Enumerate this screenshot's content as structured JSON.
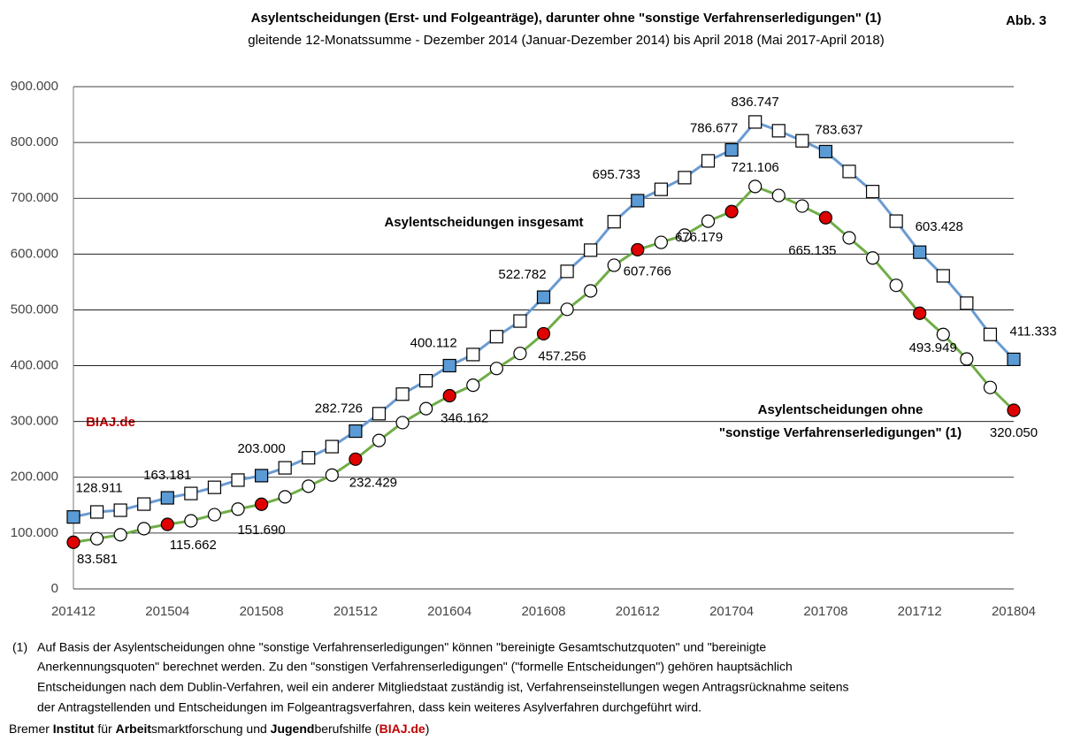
{
  "chart_data": {
    "type": "line",
    "title": "Asylentscheidungen (Erst- und Folgeanträge), darunter ohne \"sonstige Verfahrenserledigungen\" (1)",
    "subtitle": "gleitende  12-Monatssumme - Dezember 2014 (Januar-Dezember 2014) bis April 2018 (Mai 2017-April 2018)",
    "figure_label": "Abb. 3",
    "watermark": "BIAJ.de",
    "categories": [
      "201412",
      null,
      null,
      null,
      "201504",
      null,
      null,
      null,
      "201508",
      null,
      null,
      null,
      "201512",
      null,
      null,
      null,
      "201604",
      null,
      null,
      null,
      "201608",
      null,
      null,
      null,
      "201612",
      null,
      null,
      null,
      "201704",
      null,
      null,
      null,
      "201708",
      null,
      null,
      null,
      "201712",
      null,
      null,
      null,
      "201804"
    ],
    "ylim": [
      0,
      900000
    ],
    "yticks": [
      0,
      {
        "value": 100000,
        "label": "100.000"
      },
      {
        "value": 200000,
        "label": "200.000"
      },
      {
        "value": 300000,
        "label": "300.000"
      },
      {
        "value": 400000,
        "label": "400.000"
      },
      {
        "value": 500000,
        "label": "500.000"
      },
      {
        "value": 600000,
        "label": "600.000"
      },
      {
        "value": 700000,
        "label": "700.000"
      },
      {
        "value": 800000,
        "label": "800.000"
      },
      {
        "value": 900000,
        "label": "900.000"
      }
    ],
    "grid": true,
    "series": [
      {
        "name": "Asylentscheidungen insgesamt",
        "color": "#6a9bd1",
        "marker": "square",
        "marker_color": "#5b9bd5",
        "values": [
          128911,
          137900,
          141000,
          152000,
          163181,
          171000,
          182000,
          195000,
          203000,
          217000,
          235000,
          255000,
          282726,
          314000,
          349000,
          373000,
          400112,
          420000,
          452000,
          480000,
          522782,
          569000,
          607000,
          658000,
          695733,
          716000,
          737000,
          767000,
          786677,
          836747,
          821000,
          803000,
          783637,
          748000,
          712000,
          659000,
          603428,
          561000,
          512000,
          456000,
          411333
        ],
        "value_labels": [
          "128.911",
          null,
          null,
          null,
          "163.181",
          null,
          null,
          null,
          "203.000",
          null,
          null,
          null,
          "282.726",
          null,
          null,
          null,
          "400.112",
          null,
          null,
          null,
          "522.782",
          null,
          null,
          null,
          "695.733",
          null,
          null,
          null,
          "786.677",
          "836.747",
          null,
          null,
          "783.637",
          null,
          null,
          null,
          "603.428",
          null,
          null,
          null,
          "411.333"
        ]
      },
      {
        "name": "Asylentscheidungen ohne\n\"sonstige Verfahrenserledigungen\" (1)",
        "color": "#70ad47",
        "marker": "circle",
        "marker_color": "#e00000",
        "values": [
          83581,
          90000,
          97000,
          108000,
          115662,
          122000,
          133000,
          143000,
          151690,
          165000,
          184000,
          204000,
          232429,
          266000,
          298000,
          323000,
          346162,
          365000,
          395000,
          422000,
          457256,
          501000,
          534000,
          580000,
          607766,
          621000,
          634000,
          659000,
          676179,
          721106,
          705000,
          686000,
          665135,
          629000,
          593000,
          544000,
          493949,
          456000,
          412000,
          361000,
          320050
        ],
        "value_labels": [
          "83.581",
          null,
          null,
          null,
          "115.662",
          null,
          null,
          null,
          "151.690",
          null,
          null,
          null,
          "232.429",
          null,
          null,
          null,
          "346.162",
          null,
          null,
          null,
          "457.256",
          null,
          null,
          null,
          "607.766",
          null,
          null,
          null,
          "676.179",
          "721.106",
          null,
          null,
          "665.135",
          null,
          null,
          null,
          "493.949",
          null,
          null,
          null,
          "320.050"
        ]
      }
    ]
  },
  "footnote": {
    "marker": "(1)",
    "lines": [
      "Auf Basis der Asylentscheidungen ohne \"sonstige Verfahrenserledigungen\" können \"bereinigte Gesamtschutzquoten\" und \"bereinigte",
      "Anerkennungsquoten\" berechnet werden. Zu den \"sonstigen Verfahrenserledigungen\" (\"formelle Entscheidungen\") gehören hauptsächlich",
      "Entscheidungen nach dem Dublin-Verfahren, weil ein anderer Mitgliedstaat  zuständig ist, Verfahrenseinstellungen wegen Antragsrücknahme seitens",
      "der Antragstellenden und Entscheidungen im Folgeantragsverfahren, dass kein weiteres Asylverfahren durchgeführt wird."
    ]
  },
  "source": {
    "parts": [
      "Bremer ",
      "Institut",
      " für ",
      "Arbeit",
      "smarktforschung und ",
      "Jugend",
      "berufshilfe (",
      "BIAJ.de",
      ")"
    ]
  }
}
